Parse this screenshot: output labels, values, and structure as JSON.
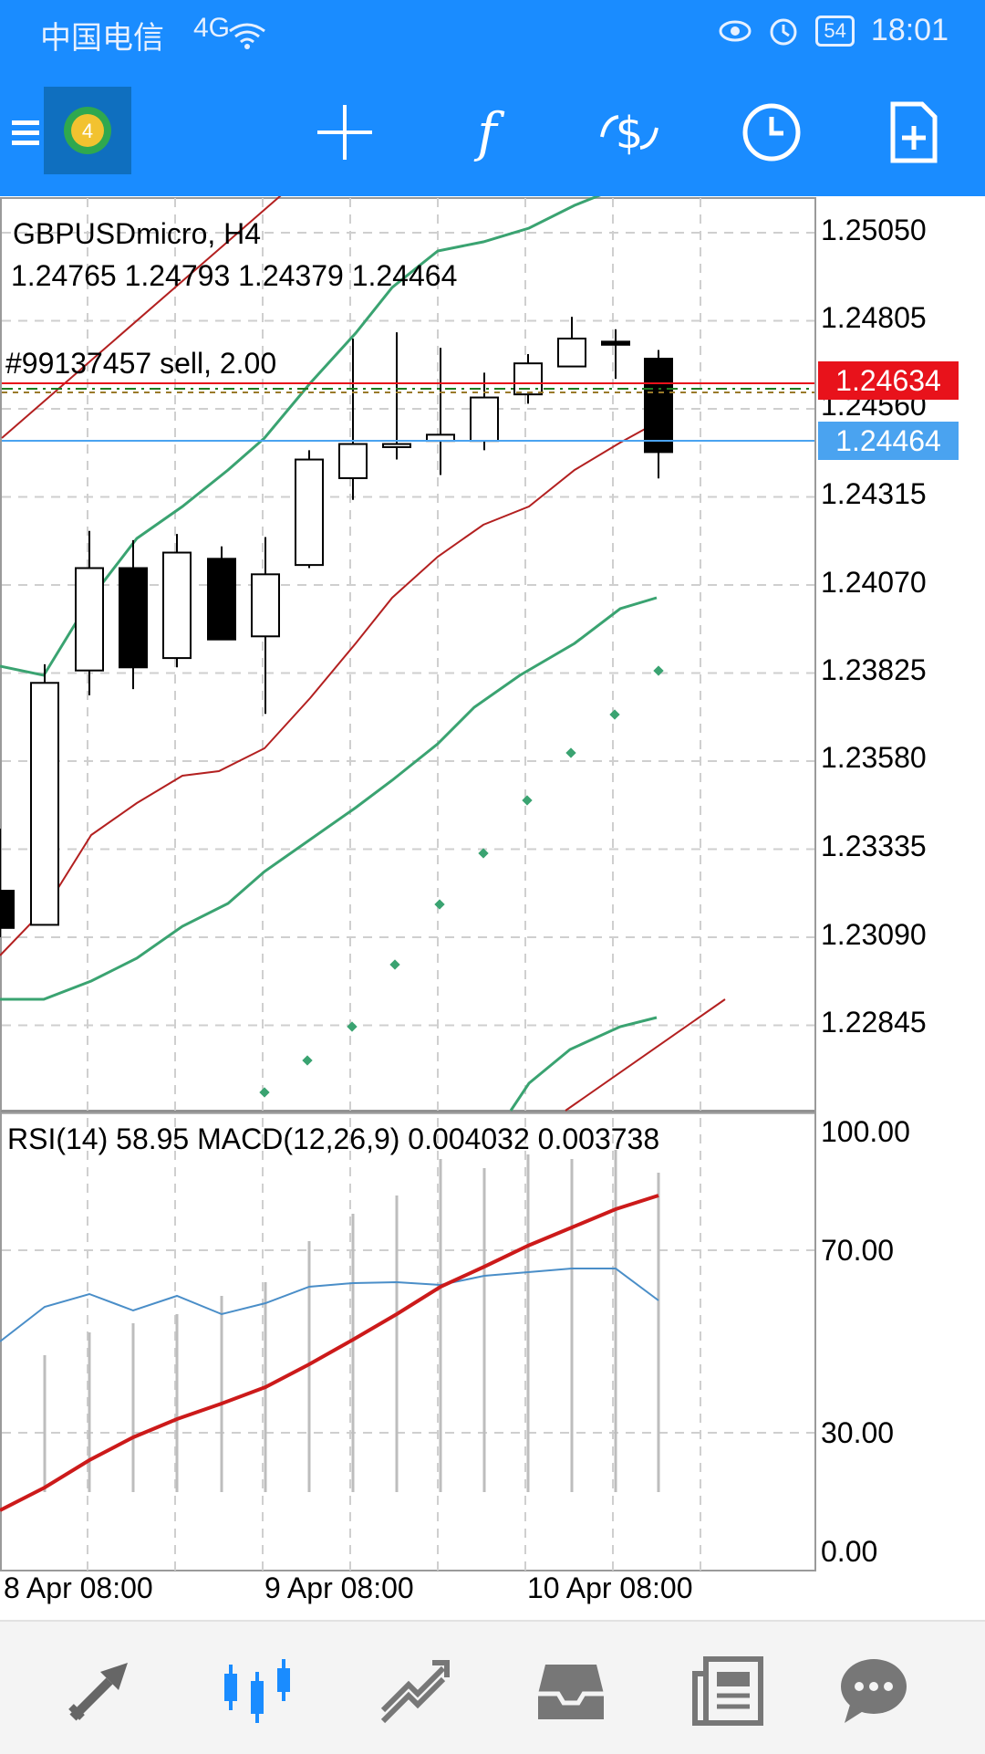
{
  "status_bar": {
    "carrier": "中国电信",
    "network": "4G",
    "battery": "54",
    "time": "18:01"
  },
  "toolbar": {
    "icons": [
      "menu-icon",
      "metatrader-logo-icon",
      "crosshair-icon",
      "indicators-icon",
      "trade-icon",
      "timeframe-icon",
      "new-order-icon"
    ]
  },
  "chart": {
    "symbol_line": "GBPUSDmicro, H4",
    "ohlc_line": "1.24765 1.24793 1.24379 1.24464",
    "order_label": "#99137457 sell, 2.00",
    "ask_tag": "1.24634",
    "bid_tag": "1.24464",
    "ask_color": "#e8121b",
    "bid_color": "#4aa3f0",
    "indicator_line": "RSI(14) 58.95 MACD(12,26,9) 0.004032 0.003738",
    "price_axis": [
      "1.25050",
      "1.24805",
      "1.24560",
      "1.24315",
      "1.24070",
      "1.23825",
      "1.23580",
      "1.23335",
      "1.23090",
      "1.22845"
    ],
    "indicator_axis": [
      "100.00",
      "70.00",
      "30.00",
      "0.00"
    ],
    "time_axis": [
      "8 Apr 08:00",
      "9 Apr 08:00",
      "10 Apr 08:00"
    ]
  },
  "chart_data": {
    "type": "candlestick",
    "symbol": "GBPUSDmicro",
    "timeframe": "H4",
    "candles": [
      {
        "o": 1.2305,
        "h": 1.2325,
        "l": 1.229,
        "c": 1.2293,
        "bull": false
      },
      {
        "o": 1.2294,
        "h": 1.2378,
        "l": 1.2294,
        "c": 1.2372,
        "bull": true
      },
      {
        "o": 1.2376,
        "h": 1.2421,
        "l": 1.2368,
        "c": 1.2409,
        "bull": true
      },
      {
        "o": 1.2409,
        "h": 1.2418,
        "l": 1.237,
        "c": 1.2377,
        "bull": false
      },
      {
        "o": 1.238,
        "h": 1.242,
        "l": 1.2377,
        "c": 1.2414,
        "bull": true
      },
      {
        "o": 1.2412,
        "h": 1.2416,
        "l": 1.2388,
        "c": 1.2386,
        "bull": false
      },
      {
        "o": 1.2387,
        "h": 1.2419,
        "l": 1.2362,
        "c": 1.2407,
        "bull": true
      },
      {
        "o": 1.241,
        "h": 1.2447,
        "l": 1.2409,
        "c": 1.2444,
        "bull": true
      },
      {
        "o": 1.2438,
        "h": 1.2483,
        "l": 1.2431,
        "c": 1.2449,
        "bull": true
      },
      {
        "o": 1.2448,
        "h": 1.2485,
        "l": 1.2444,
        "c": 1.2449,
        "bull": true
      },
      {
        "o": 1.245,
        "h": 1.248,
        "l": 1.2439,
        "c": 1.2452,
        "bull": true
      },
      {
        "o": 1.245,
        "h": 1.2472,
        "l": 1.2447,
        "c": 1.2464,
        "bull": true
      },
      {
        "o": 1.2465,
        "h": 1.2478,
        "l": 1.2462,
        "c": 1.2475,
        "bull": true
      },
      {
        "o": 1.2474,
        "h": 1.249,
        "l": 1.2474,
        "c": 1.2483,
        "bull": true
      },
      {
        "o": 1.2482,
        "h": 1.2486,
        "l": 1.247,
        "c": 1.2481,
        "bull": false
      },
      {
        "o": 1.24765,
        "h": 1.24793,
        "l": 1.24379,
        "c": 1.24464,
        "bull": false
      }
    ],
    "price_range": [
      1.2265,
      1.2518
    ],
    "rsi": 58.95,
    "macd": [
      0.004032,
      0.003738
    ]
  },
  "bottom_nav": {
    "items": [
      "quotes-icon",
      "chart-icon",
      "trade-icon",
      "history-icon",
      "news-icon",
      "messages-icon"
    ]
  }
}
